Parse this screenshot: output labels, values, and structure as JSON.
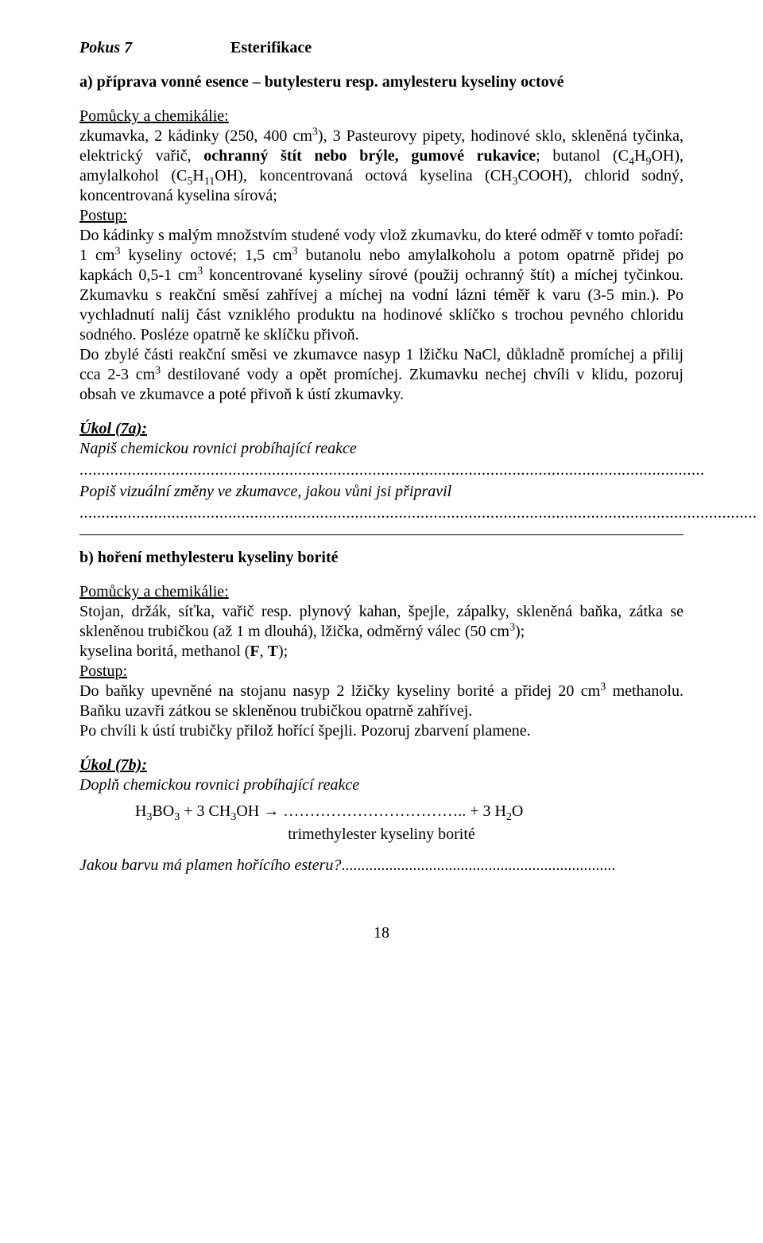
{
  "header": {
    "pokus": "Pokus 7",
    "title": "Esterifikace"
  },
  "section_a": {
    "heading": "a) příprava vonné esence – butylesteru resp. amylesteru kyseliny octové",
    "pom_label": "Pomůcky a chemikálie:",
    "pom_text_html": "zkumavka, 2 kádinky (250, 400 cm<sup>3</sup>), 3 Pasteurovy pipety, hodinové sklo, skleněná tyčinka, elektrický vařič, <b>ochranný štít nebo brýle, gumové rukavice</b>; butanol (C<sub>4</sub>H<sub>9</sub>OH), amylalkohol (C<sub>5</sub>H<sub>11</sub>OH), koncentrovaná octová kyselina (CH<sub>3</sub>COOH), chlorid sodný, koncentrovaná kyselina sírová;",
    "postup_label": "Postup:",
    "postup_text_html": "Do kádinky s malým množstvím studené vody vlož zkumavku, do které odměř v tomto pořadí: 1 cm<sup>3</sup> kyseliny octové; 1,5 cm<sup>3</sup> butanolu nebo amylalkoholu a potom opatrně přidej po kapkách 0,5-1 cm<sup>3</sup> koncentrované kyseliny sírové (použij ochranný štít) a míchej tyčinkou. Zkumavku s reakční směsí zahřívej a míchej na vodní lázni téměř k varu (3-5 min.). Po vychladnutí nalij část vzniklého produktu na hodinové sklíčko s trochou pevného chloridu sodného. Posléze opatrně ke sklíčku přivoň.",
    "postup2_text_html": "Do zbylé části reakční směsi ve zkumavce nasyp 1 lžičku NaCl, důkladně promíchej a přilij cca 2-3 cm<sup>3</sup> destilované vody a opět promíchej. Zkumavku nechej chvíli v klidu, pozoruj obsah ve zkumavce a poté přivoň k ústí zkumavky.",
    "task_label": "Úkol (7a):",
    "task_line1": "Napiš chemickou rovnici probíhající reakce",
    "dots1": "...............................................................................................................................................",
    "task_line2": "Popiš vizuální změny ve zkumavce, jakou vůni jsi připravil",
    "dots2": "..........................................................................................................................................................."
  },
  "section_b": {
    "heading": "b) hoření methylesteru kyseliny borité",
    "pom_label": "Pomůcky a chemikálie:",
    "pom_text_html": "Stojan, držák, síťka, vařič resp. plynový kahan, špejle, zápalky, skleněná baňka, zátka se skleněnou trubičkou (až 1 m dlouhá), lžička, odměrný válec (50 cm<sup>3</sup>);",
    "pom_line2_html": "kyselina boritá, methanol (<b>F</b>, <b>T</b>);",
    "postup_label": "Postup:",
    "postup_text_html": "Do baňky upevněné na stojanu nasyp 2 lžičky kyseliny borité a přidej 20 cm<sup>3</sup> methanolu. Baňku uzavři zátkou se skleněnou trubičkou opatrně zahřívej.",
    "postup_text2": "Po chvíli k ústí trubičky přilož hořící špejli. Pozoruj zbarvení plamene.",
    "task_label": "Úkol (7b):",
    "task_line1": "Doplň chemickou rovnici probíhající reakce",
    "eq_left_html": "H<sub>3</sub>BO<sub>3</sub> + 3 CH<sub>3</sub>OH  →   ……………………………..    + 3 H<sub>2</sub>O",
    "eq_center": "trimethylester kyseliny borité",
    "final_q": "Jakou barvu má plamen hořícího esteru?",
    "final_dots": "....................................................................."
  },
  "page_number": "18"
}
